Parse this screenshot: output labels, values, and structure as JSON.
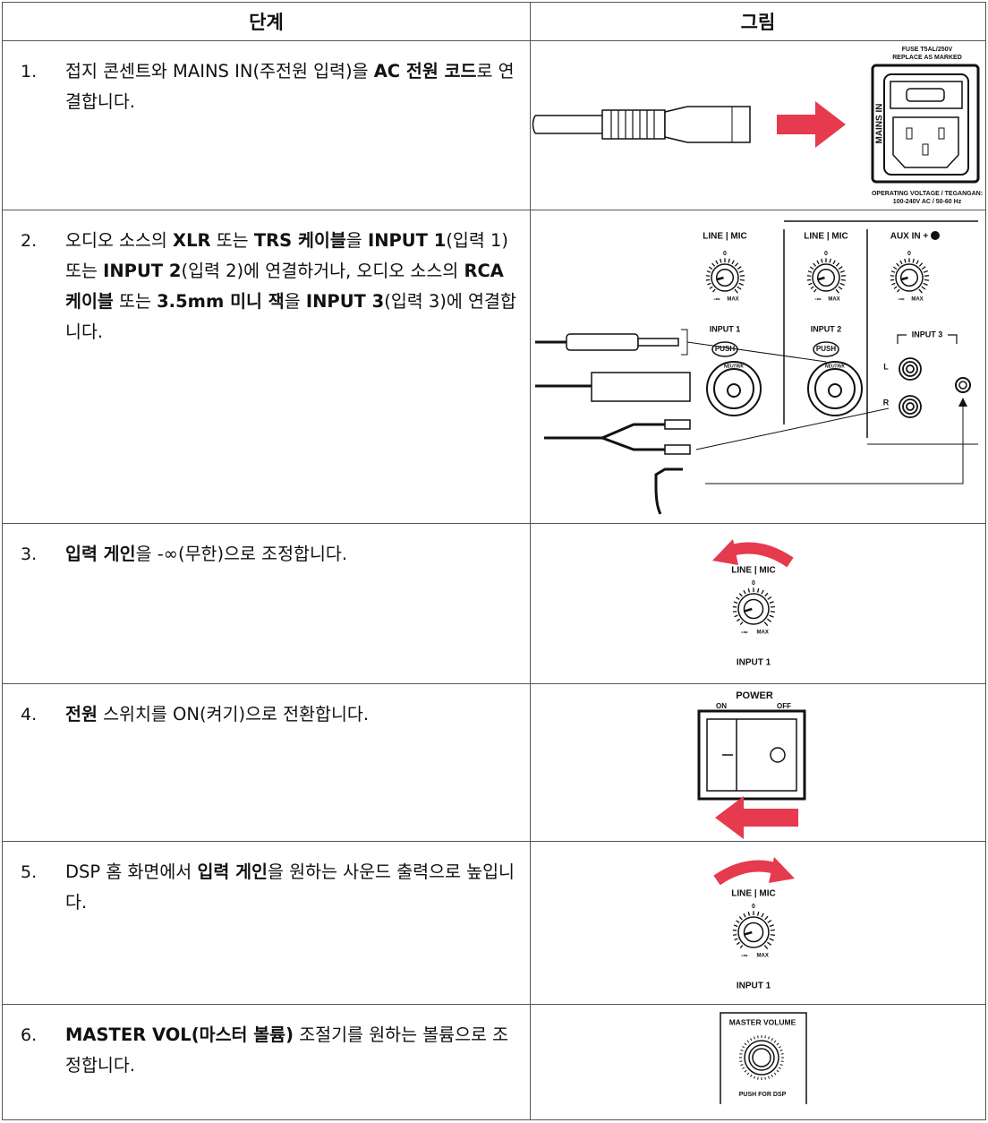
{
  "table": {
    "headers": [
      "단계",
      "그림"
    ],
    "rows": [
      {
        "number": "1.",
        "text": [
          {
            "text": "접지 콘센트와 MAINS IN(주전원 입력)을 ",
            "bold": false
          },
          {
            "text": "AC 전원 코드",
            "bold": true
          },
          {
            "text": "로 연결합니다.",
            "bold": false
          }
        ],
        "figure": {
          "fuse": "FUSE T5AL/250V",
          "replace": "REPLACE AS MARKED",
          "mains": "MAINS IN",
          "voltage_title": "OPERATING VOLTAGE / TEGANGAN:",
          "voltage": "100-240V AC / 50-60 Hz"
        }
      },
      {
        "number": "2.",
        "text": [
          {
            "text": "오디오 소스의 ",
            "bold": false
          },
          {
            "text": "XLR",
            "bold": true
          },
          {
            "text": " 또는 ",
            "bold": false
          },
          {
            "text": "TRS 케이블",
            "bold": true
          },
          {
            "text": "을 ",
            "bold": false
          },
          {
            "text": "INPUT 1",
            "bold": true
          },
          {
            "text": "(입력 1) 또는 ",
            "bold": false
          },
          {
            "text": "INPUT 2",
            "bold": true
          },
          {
            "text": "(입력 2)에 연결하거나, 오디오 소스의 ",
            "bold": false
          },
          {
            "text": "RCA 케이블",
            "bold": true
          },
          {
            "text": " 또는 ",
            "bold": false
          },
          {
            "text": "3.5mm 미니 잭",
            "bold": true
          },
          {
            "text": "을 ",
            "bold": false
          },
          {
            "text": "INPUT 3",
            "bold": true
          },
          {
            "text": "(입력 3)에 연결합니다.",
            "bold": false
          }
        ],
        "figure": {
          "line_mic": "LINE | MIC",
          "aux": "AUX IN +",
          "input1": "INPUT 1",
          "input2": "INPUT 2",
          "input3": "INPUT 3",
          "left": "L",
          "right": "R",
          "push": "PUSH",
          "neutrik": "NEUTRIK"
        }
      },
      {
        "number": "3.",
        "text": [
          {
            "text": "입력 게인",
            "bold": true
          },
          {
            "text": "을 -∞(무한)으로 조정합니다.",
            "bold": false
          }
        ],
        "figure": {
          "line_mic": "LINE | MIC",
          "input1": "INPUT 1"
        }
      },
      {
        "number": "4.",
        "text": [
          {
            "text": "전원",
            "bold": true
          },
          {
            "text": " 스위치를 ON(켜기)으로 전환합니다.",
            "bold": false
          }
        ],
        "figure": {
          "power": "POWER",
          "on": "ON",
          "off": "OFF"
        }
      },
      {
        "number": "5.",
        "text": [
          {
            "text": "DSP 홈 화면에서 ",
            "bold": false
          },
          {
            "text": "입력 게인",
            "bold": true
          },
          {
            "text": "을 원하는 사운드 출력으로 높입니다.",
            "bold": false
          }
        ],
        "figure": {
          "line_mic": "LINE | MIC",
          "input1": "INPUT 1"
        }
      },
      {
        "number": "6.",
        "text": [
          {
            "text": "MASTER VOL(마스터 볼륨)",
            "bold": true
          },
          {
            "text": " 조절기를 원하는 볼륨으로 조정합니다.",
            "bold": false
          }
        ],
        "figure": {
          "master": "MASTER VOLUME",
          "push_dsp": "PUSH FOR DSP"
        }
      }
    ],
    "knob_labels": {
      "zero": "0",
      "min": "-∞",
      "max": "MAX"
    }
  }
}
